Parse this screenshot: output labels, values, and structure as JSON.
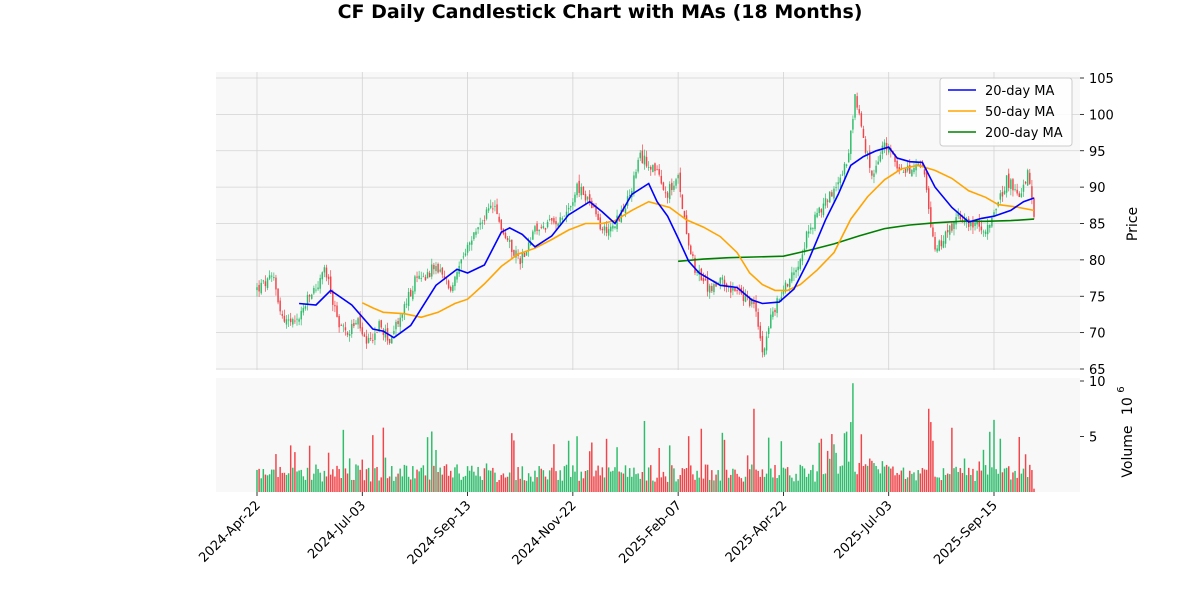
{
  "colors": {
    "up": "#2ebd6b",
    "down": "#f0454a",
    "ma20": "#0000ff",
    "ma50": "#ffa500",
    "ma200": "#008000",
    "panel_bg": "#f8f8f8",
    "grid": "#d3d3d3"
  },
  "chart_data": {
    "type": "candlestick",
    "title": "CF Daily Candlestick Chart with MAs (18 Months)",
    "ylabel": "Price",
    "volume_label": "Volume",
    "volume_exponent": "6",
    "ylim": [
      65,
      105
    ],
    "y_ticks": [
      "65",
      "70",
      "75",
      "80",
      "85",
      "90",
      "95",
      "100",
      "105"
    ],
    "volume_ylim": [
      0,
      10
    ],
    "volume_ticks": [
      "5",
      "10"
    ],
    "x_ticks": [
      "2024-Apr-22",
      "2024-Jul-03",
      "2024-Sep-13",
      "2024-Nov-22",
      "2025-Feb-07",
      "2025-Apr-22",
      "2025-Jul-03",
      "2025-Sep-15"
    ],
    "x_tick_index": [
      0,
      50,
      100,
      150,
      200,
      250,
      300,
      350
    ],
    "n_days": 370,
    "legend": {
      "position": "top-right",
      "entries": [
        "20-day MA",
        "50-day MA",
        "200-day MA"
      ]
    },
    "price_path": [
      [
        0,
        76
      ],
      [
        8,
        77.5
      ],
      [
        12,
        72
      ],
      [
        18,
        71
      ],
      [
        25,
        75
      ],
      [
        30,
        77
      ],
      [
        32,
        79
      ],
      [
        38,
        72
      ],
      [
        42,
        70
      ],
      [
        48,
        71.5
      ],
      [
        52,
        68
      ],
      [
        58,
        71
      ],
      [
        63,
        69
      ],
      [
        68,
        72
      ],
      [
        75,
        77
      ],
      [
        85,
        79
      ],
      [
        92,
        76
      ],
      [
        98,
        80
      ],
      [
        104,
        84
      ],
      [
        112,
        87.5
      ],
      [
        118,
        83
      ],
      [
        125,
        80
      ],
      [
        132,
        84
      ],
      [
        140,
        85
      ],
      [
        148,
        87
      ],
      [
        152,
        90
      ],
      [
        158,
        88
      ],
      [
        164,
        84
      ],
      [
        170,
        85
      ],
      [
        176,
        88
      ],
      [
        182,
        94
      ],
      [
        188,
        93
      ],
      [
        194,
        89
      ],
      [
        200,
        91
      ],
      [
        204,
        84
      ],
      [
        208,
        79
      ],
      [
        214,
        76
      ],
      [
        222,
        77
      ],
      [
        230,
        75
      ],
      [
        236,
        74
      ],
      [
        240,
        67.5
      ],
      [
        244,
        72
      ],
      [
        250,
        76
      ],
      [
        256,
        79
      ],
      [
        262,
        84
      ],
      [
        270,
        88
      ],
      [
        276,
        91
      ],
      [
        280,
        93
      ],
      [
        284,
        102
      ],
      [
        288,
        97
      ],
      [
        292,
        91
      ],
      [
        298,
        96
      ],
      [
        304,
        93
      ],
      [
        310,
        92
      ],
      [
        316,
        93
      ],
      [
        322,
        81
      ],
      [
        328,
        84
      ],
      [
        334,
        86
      ],
      [
        340,
        85
      ],
      [
        344,
        84
      ],
      [
        350,
        86
      ],
      [
        356,
        91
      ],
      [
        362,
        89
      ],
      [
        366,
        92
      ],
      [
        369,
        86
      ]
    ],
    "ma20": [
      [
        20,
        74
      ],
      [
        28,
        73.8
      ],
      [
        35,
        75.8
      ],
      [
        45,
        73.8
      ],
      [
        55,
        70.5
      ],
      [
        60,
        70.2
      ],
      [
        65,
        69.3
      ],
      [
        73,
        71
      ],
      [
        85,
        76.5
      ],
      [
        95,
        78.7
      ],
      [
        100,
        78.2
      ],
      [
        108,
        79.3
      ],
      [
        116,
        83.8
      ],
      [
        120,
        84.4
      ],
      [
        126,
        83.5
      ],
      [
        132,
        81.8
      ],
      [
        140,
        83.3
      ],
      [
        148,
        86.2
      ],
      [
        158,
        88
      ],
      [
        164,
        86.6
      ],
      [
        170,
        85
      ],
      [
        178,
        89
      ],
      [
        186,
        90.5
      ],
      [
        190,
        88
      ],
      [
        195,
        86
      ],
      [
        200,
        83
      ],
      [
        205,
        79.8
      ],
      [
        210,
        78.2
      ],
      [
        220,
        76.5
      ],
      [
        228,
        76.2
      ],
      [
        235,
        74.5
      ],
      [
        240,
        74
      ],
      [
        248,
        74.2
      ],
      [
        255,
        76
      ],
      [
        262,
        80
      ],
      [
        270,
        85.5
      ],
      [
        276,
        89
      ],
      [
        282,
        93
      ],
      [
        288,
        94.2
      ],
      [
        294,
        95
      ],
      [
        300,
        95.5
      ],
      [
        304,
        94
      ],
      [
        310,
        93.5
      ],
      [
        316,
        93.4
      ],
      [
        322,
        90
      ],
      [
        330,
        87.2
      ],
      [
        338,
        85.2
      ],
      [
        344,
        85.7
      ],
      [
        350,
        86
      ],
      [
        358,
        86.8
      ],
      [
        364,
        88
      ],
      [
        369,
        88.5
      ]
    ],
    "ma50": [
      [
        50,
        74.1
      ],
      [
        55,
        73.4
      ],
      [
        60,
        72.8
      ],
      [
        70,
        72.6
      ],
      [
        78,
        72.1
      ],
      [
        86,
        72.8
      ],
      [
        94,
        74
      ],
      [
        100,
        74.6
      ],
      [
        108,
        76.7
      ],
      [
        116,
        79.1
      ],
      [
        124,
        80.8
      ],
      [
        132,
        81.6
      ],
      [
        140,
        82.8
      ],
      [
        148,
        84.1
      ],
      [
        156,
        85
      ],
      [
        164,
        85
      ],
      [
        170,
        85.4
      ],
      [
        178,
        86.8
      ],
      [
        186,
        88
      ],
      [
        196,
        87.2
      ],
      [
        204,
        85.5
      ],
      [
        212,
        84.5
      ],
      [
        220,
        83.2
      ],
      [
        228,
        81
      ],
      [
        234,
        78.2
      ],
      [
        240,
        76.6
      ],
      [
        246,
        75.8
      ],
      [
        252,
        75.8
      ],
      [
        258,
        76.6
      ],
      [
        266,
        78.6
      ],
      [
        274,
        81
      ],
      [
        282,
        85.6
      ],
      [
        290,
        88.7
      ],
      [
        298,
        91
      ],
      [
        306,
        92.5
      ],
      [
        314,
        93
      ],
      [
        322,
        92.3
      ],
      [
        330,
        91.2
      ],
      [
        338,
        89.5
      ],
      [
        346,
        88.6
      ],
      [
        352,
        87.6
      ],
      [
        360,
        87.3
      ],
      [
        369,
        86.8
      ]
    ],
    "ma200": [
      [
        200,
        79.8
      ],
      [
        212,
        80.1
      ],
      [
        224,
        80.3
      ],
      [
        236,
        80.4
      ],
      [
        250,
        80.5
      ],
      [
        262,
        81.3
      ],
      [
        274,
        82.2
      ],
      [
        286,
        83.3
      ],
      [
        298,
        84.3
      ],
      [
        310,
        84.8
      ],
      [
        322,
        85.1
      ],
      [
        334,
        85.3
      ],
      [
        346,
        85.3
      ],
      [
        358,
        85.4
      ],
      [
        369,
        85.6
      ]
    ]
  }
}
